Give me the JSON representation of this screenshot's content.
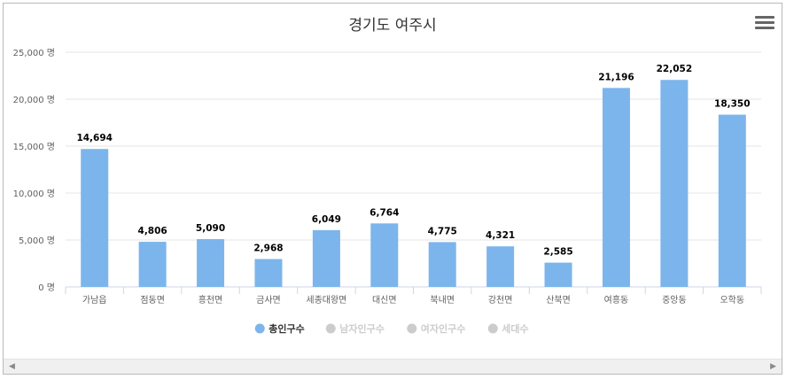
{
  "chart_data": {
    "type": "bar",
    "title": "경기도 여주시",
    "categories": [
      "가남읍",
      "점동면",
      "흥천면",
      "금사면",
      "세종대왕면",
      "대신면",
      "북내면",
      "강천면",
      "산북면",
      "여흥동",
      "중앙동",
      "오학동"
    ],
    "series": [
      {
        "name": "총인구수",
        "values": [
          14694,
          4806,
          5090,
          2968,
          6049,
          6764,
          4775,
          4321,
          2585,
          21196,
          22052,
          18350
        ],
        "color": "#7cb5ec",
        "visible": true
      }
    ],
    "data_labels": [
      "14,694",
      "4,806",
      "5,090",
      "2,968",
      "6,049",
      "6,764",
      "4,775",
      "4,321",
      "2,585",
      "21,196",
      "22,052",
      "18,350"
    ],
    "y_ticks": [
      0,
      5000,
      10000,
      15000,
      20000,
      25000
    ],
    "y_tick_labels": [
      "0 명",
      "5,000 명",
      "10,000 명",
      "15,000 명",
      "20,000 명",
      "25,000 명"
    ],
    "ylim": [
      0,
      25000
    ],
    "grid": true,
    "legend_position": "bottom",
    "legend": [
      {
        "label": "총인구수",
        "color": "#7cb5ec",
        "active": true
      },
      {
        "label": "남자인구수",
        "color": "#cccccc",
        "active": false
      },
      {
        "label": "여자인구수",
        "color": "#cccccc",
        "active": false
      },
      {
        "label": "세대수",
        "color": "#cccccc",
        "active": false
      }
    ]
  },
  "ui": {
    "menu_icon": "hamburger-menu-icon",
    "scroll_left_icon": "◀",
    "scroll_right_icon": "▶"
  }
}
